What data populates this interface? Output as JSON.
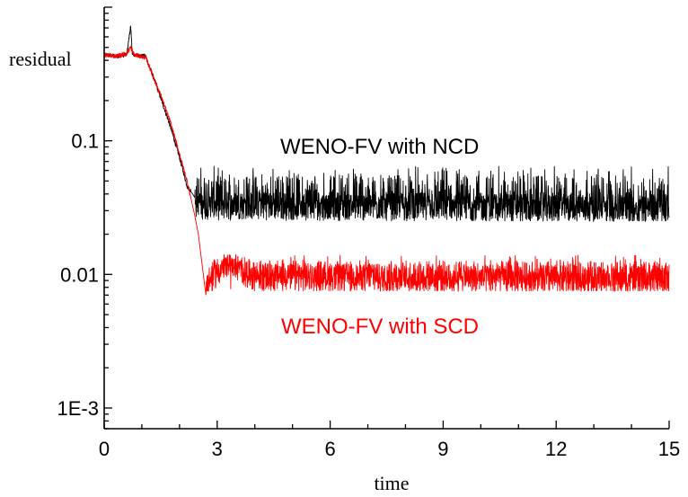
{
  "chart_data": {
    "type": "line",
    "xlabel": "time",
    "ylabel": "residual",
    "x_scale": "linear",
    "y_scale": "log",
    "xlim": [
      0,
      15
    ],
    "ylim": [
      0.0007,
      1.0
    ],
    "x_ticks": [
      "0",
      "3",
      "6",
      "9",
      "12",
      "15"
    ],
    "y_ticks": [
      "1E-3",
      "0.01",
      "0.1"
    ],
    "y_tick_values": [
      0.001,
      0.01,
      0.1
    ],
    "grid": false,
    "series": [
      {
        "name": "WENO-FV with NCD",
        "color": "#000000",
        "points": [
          [
            0,
            0.44
          ],
          [
            0.3,
            0.43
          ],
          [
            0.6,
            0.44
          ],
          [
            0.7,
            0.72
          ],
          [
            0.75,
            0.44
          ],
          [
            1.1,
            0.43
          ],
          [
            1.25,
            0.33
          ],
          [
            1.5,
            0.21
          ],
          [
            1.75,
            0.13
          ],
          [
            2.0,
            0.075
          ],
          [
            2.2,
            0.046
          ],
          [
            2.4,
            0.038
          ],
          [
            2.6,
            0.033
          ],
          [
            15,
            0.031
          ]
        ],
        "noise_band": {
          "x_start": 2.4,
          "x_end": 15,
          "low": 0.025,
          "high": 0.065
        }
      },
      {
        "name": "WENO-FV with SCD",
        "color": "#ff0000",
        "points": [
          [
            0,
            0.44
          ],
          [
            0.3,
            0.43
          ],
          [
            0.6,
            0.45
          ],
          [
            0.7,
            0.5
          ],
          [
            0.8,
            0.44
          ],
          [
            1.1,
            0.42
          ],
          [
            1.25,
            0.33
          ],
          [
            1.5,
            0.22
          ],
          [
            1.75,
            0.14
          ],
          [
            2.0,
            0.08
          ],
          [
            2.2,
            0.05
          ],
          [
            2.4,
            0.028
          ],
          [
            2.5,
            0.02
          ],
          [
            2.7,
            0.007
          ],
          [
            2.9,
            0.01
          ],
          [
            3.3,
            0.012
          ],
          [
            3.6,
            0.011
          ],
          [
            4.0,
            0.0095
          ],
          [
            15,
            0.009
          ]
        ],
        "noise_band": {
          "x_start": 2.7,
          "x_end": 15,
          "low": 0.0075,
          "high": 0.014
        }
      }
    ]
  }
}
